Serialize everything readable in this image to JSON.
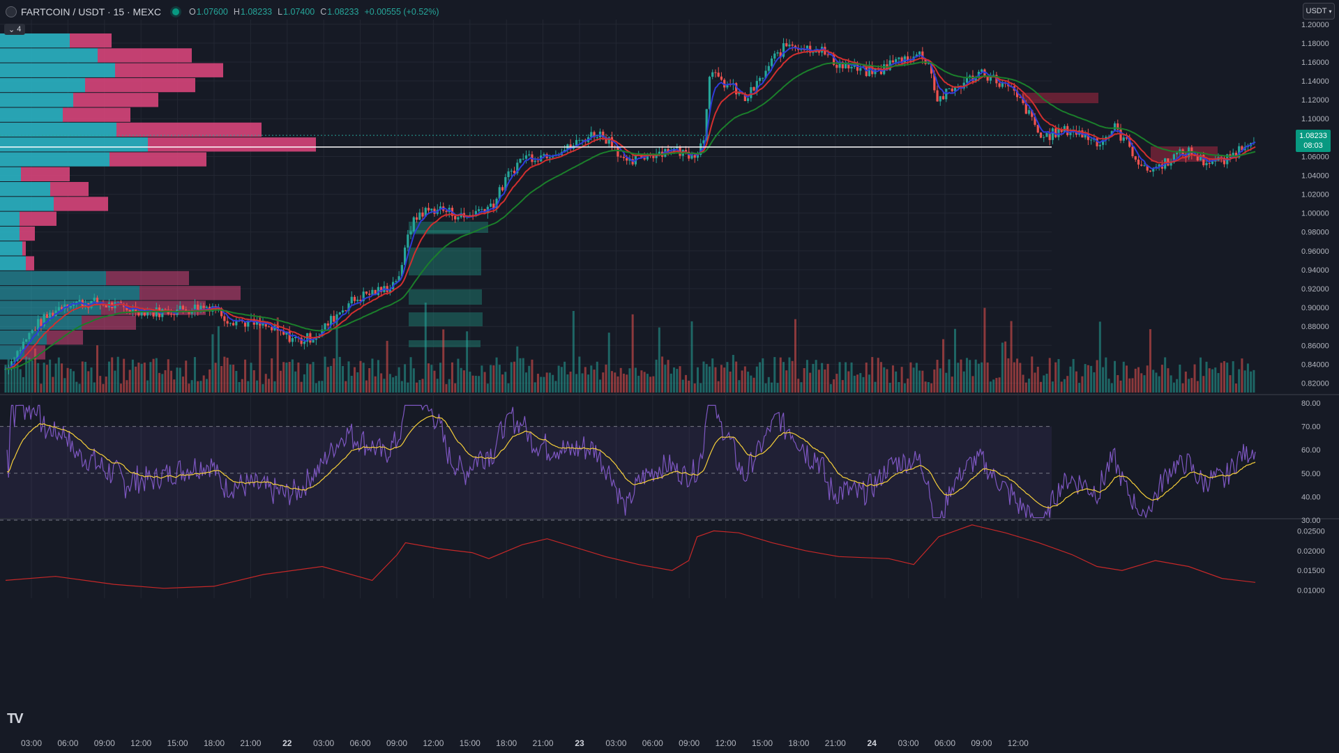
{
  "header": {
    "symbol": "FARTCOIN / USDT · 15 · MEXC",
    "open_key": "O",
    "open": "1.07600",
    "high_key": "H",
    "high": "1.08233",
    "low_key": "L",
    "low": "1.07400",
    "close_key": "C",
    "close": "1.08233",
    "change": "+0.00555 (+0.52%)",
    "collapse_count": "4"
  },
  "currency_selector": {
    "label": "USDT"
  },
  "price_axis": {
    "ticks": [
      "1.20000",
      "1.18000",
      "1.16000",
      "1.14000",
      "1.12000",
      "1.10000",
      "1.06000",
      "1.04000",
      "1.02000",
      "1.00000",
      "0.98000",
      "0.96000",
      "0.94000",
      "0.92000",
      "0.90000",
      "0.88000",
      "0.86000",
      "0.84000",
      "0.82000"
    ],
    "current_price": "1.08233",
    "countdown": "08:03"
  },
  "rsi_axis": {
    "ticks": [
      "80.00",
      "70.00",
      "60.00",
      "50.00",
      "40.00",
      "30.00"
    ]
  },
  "third_axis": {
    "ticks": [
      "0.02500",
      "0.02000",
      "0.01500",
      "0.01000"
    ]
  },
  "time_axis": {
    "ticks": [
      "03:00",
      "06:00",
      "09:00",
      "12:00",
      "15:00",
      "18:00",
      "21:00",
      "22",
      "03:00",
      "06:00",
      "09:00",
      "12:00",
      "15:00",
      "18:00",
      "21:00",
      "23",
      "03:00",
      "06:00",
      "09:00",
      "12:00",
      "15:00",
      "18:00",
      "21:00",
      "24",
      "03:00",
      "06:00",
      "09:00",
      "12:00"
    ]
  },
  "colors": {
    "up": "#26a69a",
    "down": "#ef5350",
    "background": "#161a25",
    "rsi": "#7e57c2",
    "rsi_ma": "#f7d03a",
    "ema_fast": "#2f3bd8",
    "ema_mid": "#d32f2f",
    "ema_slow": "#1b7f2b",
    "third_line": "#c62828"
  },
  "logo": "TV",
  "chart_data": {
    "type": "candlestick",
    "symbol": "FARTCOIN / USDT",
    "interval": "15",
    "exchange": "MEXC",
    "ylim": [
      0.81,
      1.205
    ],
    "price_path": [
      [
        0,
        0.835
      ],
      [
        20,
        0.88
      ],
      [
        40,
        0.905
      ],
      [
        60,
        0.905
      ],
      [
        80,
        0.9
      ],
      [
        100,
        0.895
      ],
      [
        120,
        0.898
      ],
      [
        140,
        0.902
      ],
      [
        150,
        0.888
      ],
      [
        160,
        0.885
      ],
      [
        175,
        0.88
      ],
      [
        190,
        0.87
      ],
      [
        200,
        0.865
      ],
      [
        212,
        0.872
      ],
      [
        222,
        0.89
      ],
      [
        232,
        0.905
      ],
      [
        245,
        0.915
      ],
      [
        255,
        0.918
      ],
      [
        262,
        0.926
      ],
      [
        268,
        0.94
      ],
      [
        272,
        0.98
      ],
      [
        280,
        1.0
      ],
      [
        292,
        1.005
      ],
      [
        302,
        1.0
      ],
      [
        310,
        0.995
      ],
      [
        320,
        1.003
      ],
      [
        330,
        1.01
      ],
      [
        340,
        1.04
      ],
      [
        350,
        1.06
      ],
      [
        360,
        1.06
      ],
      [
        370,
        1.065
      ],
      [
        380,
        1.068
      ],
      [
        392,
        1.08
      ],
      [
        400,
        1.085
      ],
      [
        410,
        1.076
      ],
      [
        420,
        1.05
      ],
      [
        430,
        1.06
      ],
      [
        440,
        1.064
      ],
      [
        450,
        1.068
      ],
      [
        460,
        1.063
      ],
      [
        468,
        1.065
      ],
      [
        472,
        1.08
      ],
      [
        476,
        1.15
      ],
      [
        482,
        1.14
      ],
      [
        490,
        1.135
      ],
      [
        500,
        1.12
      ],
      [
        510,
        1.14
      ],
      [
        520,
        1.165
      ],
      [
        530,
        1.18
      ],
      [
        540,
        1.175
      ],
      [
        550,
        1.175
      ],
      [
        560,
        1.16
      ],
      [
        570,
        1.155
      ],
      [
        580,
        1.15
      ],
      [
        590,
        1.15
      ],
      [
        600,
        1.16
      ],
      [
        610,
        1.165
      ],
      [
        618,
        1.168
      ],
      [
        624,
        1.16
      ],
      [
        630,
        1.12
      ],
      [
        640,
        1.13
      ],
      [
        650,
        1.14
      ],
      [
        660,
        1.15
      ],
      [
        670,
        1.14
      ],
      [
        680,
        1.13
      ],
      [
        690,
        1.11
      ],
      [
        700,
        1.08
      ],
      [
        710,
        1.085
      ],
      [
        720,
        1.088
      ],
      [
        730,
        1.082
      ],
      [
        740,
        1.075
      ],
      [
        750,
        1.09
      ],
      [
        760,
        1.07
      ],
      [
        770,
        1.045
      ],
      [
        780,
        1.05
      ],
      [
        790,
        1.06
      ],
      [
        800,
        1.065
      ],
      [
        810,
        1.055
      ],
      [
        825,
        1.055
      ],
      [
        840,
        1.076
      ],
      [
        845,
        1.082
      ]
    ],
    "volume_profile_rows": [
      {
        "buy": 100,
        "sell": 60
      },
      {
        "buy": 140,
        "sell": 135
      },
      {
        "buy": 165,
        "sell": 155
      },
      {
        "buy": 122,
        "sell": 158
      },
      {
        "buy": 105,
        "sell": 122
      },
      {
        "buy": 90,
        "sell": 97
      },
      {
        "buy": 167,
        "sell": 208
      },
      {
        "buy": 212,
        "sell": 241
      },
      {
        "buy": 157,
        "sell": 139
      },
      {
        "buy": 30,
        "sell": 70
      },
      {
        "buy": 72,
        "sell": 55
      },
      {
        "buy": 77,
        "sell": 78
      },
      {
        "buy": 28,
        "sell": 53
      },
      {
        "buy": 28,
        "sell": 22
      },
      {
        "buy": 32,
        "sell": 5
      },
      {
        "buy": 37,
        "sell": 12
      },
      {
        "buy": 152,
        "sell": 119
      },
      {
        "buy": 200,
        "sell": 145
      },
      {
        "buy": 145,
        "sell": 150
      },
      {
        "buy": 117,
        "sell": 78
      },
      {
        "buy": 67,
        "sell": 52
      },
      {
        "buy": 35,
        "sell": 30
      }
    ],
    "rsi_range": [
      30,
      80
    ],
    "rsi_band": [
      30,
      70
    ],
    "third_range": [
      0.008,
      0.027
    ],
    "third_path": [
      [
        0,
        0.0125
      ],
      [
        60,
        0.0135
      ],
      [
        130,
        0.0115
      ],
      [
        190,
        0.0105
      ],
      [
        250,
        0.011
      ],
      [
        310,
        0.014
      ],
      [
        380,
        0.016
      ],
      [
        440,
        0.0125
      ],
      [
        470,
        0.019
      ],
      [
        480,
        0.022
      ],
      [
        520,
        0.0205
      ],
      [
        560,
        0.0195
      ],
      [
        580,
        0.018
      ],
      [
        620,
        0.0215
      ],
      [
        650,
        0.023
      ],
      [
        720,
        0.0185
      ],
      [
        760,
        0.0165
      ],
      [
        800,
        0.015
      ],
      [
        820,
        0.0175
      ],
      [
        830,
        0.0235
      ],
      [
        850,
        0.025
      ],
      [
        880,
        0.0245
      ],
      [
        920,
        0.022
      ],
      [
        960,
        0.02
      ],
      [
        1000,
        0.0185
      ],
      [
        1060,
        0.018
      ],
      [
        1090,
        0.0165
      ],
      [
        1120,
        0.0235
      ],
      [
        1160,
        0.0265
      ],
      [
        1200,
        0.0245
      ],
      [
        1240,
        0.022
      ],
      [
        1280,
        0.019
      ],
      [
        1310,
        0.016
      ],
      [
        1340,
        0.015
      ],
      [
        1380,
        0.0175
      ],
      [
        1420,
        0.016
      ],
      [
        1460,
        0.013
      ],
      [
        1500,
        0.012
      ]
    ]
  }
}
